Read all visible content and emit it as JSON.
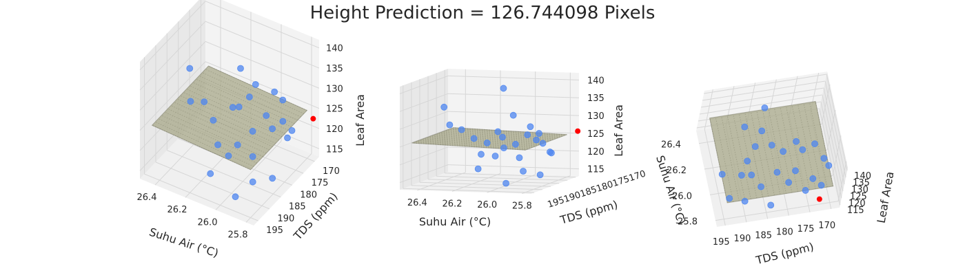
{
  "title": "Height Prediction = 126.744098 Pixels",
  "colors": {
    "pane_left": "#f3f3f3",
    "pane_right": "#e8e8e8",
    "pane_floor": "#f0f0f0",
    "grid": "#d6d6d6",
    "surface": "#a8a88a",
    "surface_dot": "#6f6f5a",
    "points": "#4e86f0",
    "prediction": "#ff0000"
  },
  "chart_data": [
    {
      "type": "scatter",
      "subtype": "3d-scatter-with-regression-plane",
      "view": "front-left",
      "xlabel": "Suhu Air (°C)",
      "ylabel": "TDS (ppm)",
      "zlabel": "Leaf Area",
      "x_ticks": [
        "26.4",
        "26.2",
        "26.0",
        "25.8"
      ],
      "y_ticks": [
        "195",
        "190",
        "185",
        "180",
        "175",
        "170"
      ],
      "z_ticks": [
        "115",
        "120",
        "125",
        "130",
        "135",
        "140"
      ],
      "xlim": [
        25.75,
        26.5
      ],
      "ylim": [
        168,
        197
      ],
      "zlim": [
        113,
        142
      ],
      "grid": true
    },
    {
      "type": "scatter",
      "subtype": "3d-scatter-with-regression-plane",
      "view": "side-edge-on",
      "xlabel": "Suhu Air (°C)",
      "ylabel": "TDS (ppm)",
      "zlabel": "Leaf Area",
      "x_ticks": [
        "26.4",
        "26.2",
        "26.0",
        "25.8"
      ],
      "y_ticks": [
        "195",
        "190",
        "185",
        "180",
        "175",
        "170"
      ],
      "y_ticks_text": "195190185180175170",
      "z_ticks": [
        "115",
        "120",
        "125",
        "130",
        "135",
        "140"
      ],
      "grid": true
    },
    {
      "type": "scatter",
      "subtype": "3d-scatter-with-regression-plane",
      "view": "top-down",
      "xlabel": "Suhu Air (°C)",
      "ylabel": "TDS (ppm)",
      "zlabel": "Leaf Area",
      "x_ticks": [
        "26.4",
        "26.2",
        "26.0",
        "25.8"
      ],
      "y_ticks": [
        "195",
        "190",
        "185",
        "180",
        "175",
        "170"
      ],
      "z_ticks": [
        "115",
        "120",
        "125",
        "130",
        "135",
        "140"
      ],
      "grid": true
    }
  ],
  "points": [
    {
      "x": 26.38,
      "y": 183,
      "z": 134
    },
    {
      "x": 26.3,
      "y": 188,
      "z": 130
    },
    {
      "x": 26.27,
      "y": 184,
      "z": 128
    },
    {
      "x": 26.18,
      "y": 186,
      "z": 126
    },
    {
      "x": 26.1,
      "y": 180,
      "z": 127
    },
    {
      "x": 26.05,
      "y": 176,
      "z": 131
    },
    {
      "x": 26.02,
      "y": 190,
      "z": 122
    },
    {
      "x": 25.98,
      "y": 182,
      "z": 124
    },
    {
      "x": 25.95,
      "y": 178,
      "z": 126
    },
    {
      "x": 25.92,
      "y": 186,
      "z": 121
    },
    {
      "x": 25.9,
      "y": 174,
      "z": 123
    },
    {
      "x": 25.88,
      "y": 180,
      "z": 125
    },
    {
      "x": 25.86,
      "y": 190,
      "z": 118
    },
    {
      "x": 25.84,
      "y": 176,
      "z": 121
    },
    {
      "x": 26.15,
      "y": 172,
      "z": 124
    },
    {
      "x": 26.0,
      "y": 171,
      "z": 127
    },
    {
      "x": 25.82,
      "y": 184,
      "z": 116
    },
    {
      "x": 26.08,
      "y": 194,
      "z": 119
    },
    {
      "x": 25.93,
      "y": 193,
      "z": 115
    },
    {
      "x": 26.12,
      "y": 188,
      "z": 122
    },
    {
      "x": 25.96,
      "y": 170,
      "z": 125
    },
    {
      "x": 26.2,
      "y": 176,
      "z": 123
    },
    {
      "x": 25.87,
      "y": 172,
      "z": 120
    },
    {
      "x": 26.03,
      "y": 184,
      "z": 140
    },
    {
      "x": 25.99,
      "y": 188,
      "z": 124
    }
  ],
  "prediction": {
    "x": 25.7,
    "y": 174,
    "z": 126.744098
  },
  "plane": {
    "intercept": 125.2,
    "coef_x": 1.5,
    "coef_y": 0.0
  }
}
